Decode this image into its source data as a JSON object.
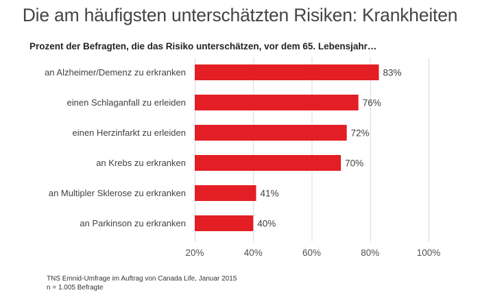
{
  "title": "Die am häufigsten unterschätzten Risiken: Krankheiten",
  "subtitle": "Prozent der Befragten, die das Risiko unterschätzen, vor dem 65. Lebensjahr…",
  "source": {
    "line1": "TNS Emnid-Umfrage im Auftrag von Canada Life, Januar 2015",
    "line2": "n = 1.005 Befragte"
  },
  "colors": {
    "bar": "#e31e24",
    "grid": "#d9d9d9"
  },
  "chart_data": {
    "type": "bar",
    "orientation": "horizontal",
    "title": "Die am häufigsten unterschätzten Risiken: Krankheiten",
    "subtitle": "Prozent der Befragten, die das Risiko unterschätzen, vor dem 65. Lebensjahr…",
    "categories": [
      "an Alzheimer/Demenz  zu erkranken",
      "einen Schlaganfall  zu erleiden",
      "einen Herzinfarkt  zu erleiden",
      "an Krebs zu erkranken",
      "an Multipler  Sklerose zu erkranken",
      "an Parkinson  zu erkranken"
    ],
    "values": [
      83,
      76,
      72,
      70,
      41,
      40
    ],
    "value_labels": [
      "83%",
      "76%",
      "72%",
      "70%",
      "41%",
      "40%"
    ],
    "xlabel": "",
    "ylabel": "",
    "xlim": [
      20,
      100
    ],
    "xticks": [
      20,
      40,
      60,
      80,
      100
    ],
    "xtick_labels": [
      "20%",
      "40%",
      "60%",
      "80%",
      "100%"
    ],
    "grid": true,
    "legend": "none"
  }
}
